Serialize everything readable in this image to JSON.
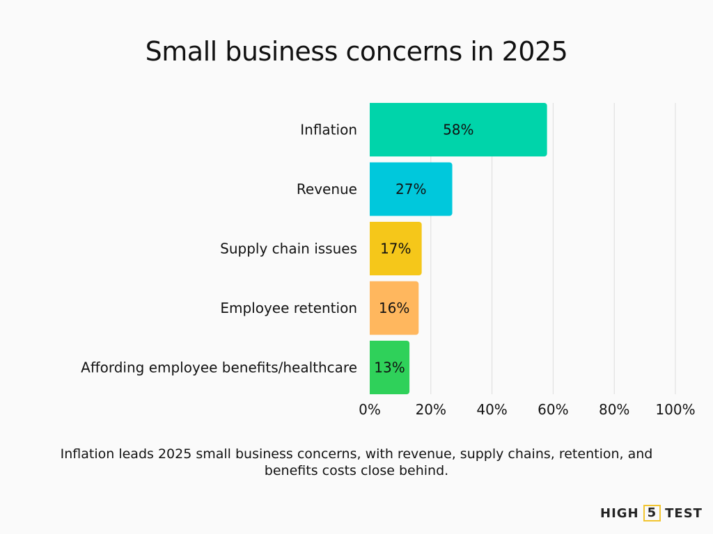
{
  "chart_data": {
    "type": "bar",
    "orientation": "horizontal",
    "title": "Small business concerns in 2025",
    "categories": [
      "Inflation",
      "Revenue",
      "Supply chain issues",
      "Employee retention",
      "Affording employee benefits/healthcare"
    ],
    "values": [
      58,
      27,
      17,
      16,
      13
    ],
    "data_labels": [
      "58%",
      "27%",
      "17%",
      "16%",
      "13%"
    ],
    "colors": [
      "#00d4aa",
      "#00c8dc",
      "#f5c71a",
      "#ffb75e",
      "#2fd15a"
    ],
    "xlim": [
      0,
      100
    ],
    "xticks": [
      0,
      20,
      40,
      60,
      80,
      100
    ],
    "xtick_labels": [
      "0%",
      "20%",
      "40%",
      "60%",
      "80%",
      "100%"
    ],
    "grid": true,
    "xlabel": "",
    "ylabel": ""
  },
  "caption": "Inflation leads 2025 small business concerns, with revenue, supply chains, retention, and benefits costs close behind.",
  "logo": {
    "left": "HIGH",
    "mid": "5",
    "right": "TEST",
    "accent": "#f2c530"
  }
}
